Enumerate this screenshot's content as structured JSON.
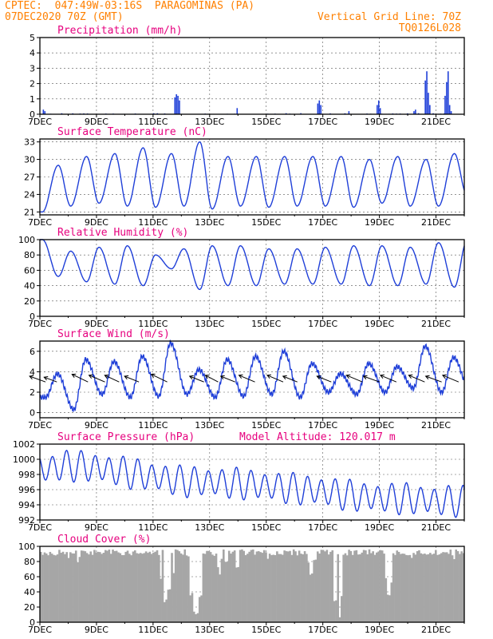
{
  "header": {
    "station": "CPTEC:  047:49W-03:16S  PARAGOMINAS (PA)",
    "run": "07DEC2020 70Z (GMT)",
    "grid_line": "Vertical Grid Line: 70Z",
    "code": "TQ0126L028"
  },
  "colors": {
    "header": "#ff8000",
    "title": "#e6007e",
    "series": "#1f3fd8",
    "cloud": "#a6a6a6",
    "wind": "#000000"
  },
  "chart_data": [
    {
      "id": "precip",
      "type": "bar",
      "title": "Precipitation (mm/h)",
      "ylim": [
        0,
        5
      ],
      "yticks": [
        0,
        1,
        2,
        3,
        4,
        5
      ],
      "xlabels": [
        "7DEC",
        "9DEC",
        "11DEC",
        "13DEC",
        "15DEC",
        "17DEC",
        "19DEC",
        "21DEC"
      ],
      "xlim_days": [
        0,
        15
      ],
      "events": [
        {
          "day": 0.1,
          "values": [
            0.3,
            0.2
          ]
        },
        {
          "day": 4.75,
          "values": [
            1.1,
            1.3,
            1.2,
            0.9
          ]
        },
        {
          "day": 6.95,
          "values": [
            0.4
          ]
        },
        {
          "day": 9.8,
          "values": [
            0.7,
            0.9,
            0.6
          ]
        },
        {
          "day": 10.9,
          "values": [
            0.2
          ]
        },
        {
          "day": 11.9,
          "values": [
            0.6,
            0.9,
            0.4
          ]
        },
        {
          "day": 13.2,
          "values": [
            0.2,
            0.3
          ]
        },
        {
          "day": 13.6,
          "values": [
            2.2,
            2.8,
            1.4,
            0.6
          ]
        },
        {
          "day": 14.3,
          "values": [
            1.2,
            2.1,
            2.8,
            0.6,
            0.2
          ]
        }
      ]
    },
    {
      "id": "temp",
      "type": "line",
      "title": "Surface Temperature (nC)",
      "ylim": [
        20.5,
        33.5
      ],
      "yticks": [
        21,
        24,
        27,
        30,
        33
      ],
      "xlabels": [
        "7DEC",
        "9DEC",
        "11DEC",
        "13DEC",
        "15DEC",
        "17DEC",
        "19DEC",
        "21DEC"
      ],
      "daily_min": [
        21.0,
        22.0,
        22.5,
        22.0,
        21.8,
        22.0,
        21.5,
        22.0,
        21.8,
        22.0,
        22.0,
        21.8,
        22.5,
        22.0,
        22.0,
        24.0
      ],
      "daily_max": [
        29.0,
        30.5,
        31.0,
        32.0,
        31.0,
        33.0,
        30.5,
        30.5,
        30.5,
        30.5,
        30.5,
        30.0,
        30.5,
        30.0,
        31.0
      ],
      "min_day_fraction": 0.09,
      "max_day_fraction": 0.65
    },
    {
      "id": "rh",
      "type": "line",
      "title": "Relative Humidity (%)",
      "ylim": [
        0,
        100
      ],
      "yticks": [
        0,
        20,
        40,
        60,
        80,
        100
      ],
      "xlabels": [
        "7DEC",
        "9DEC",
        "11DEC",
        "13DEC",
        "15DEC",
        "17DEC",
        "19DEC",
        "21DEC"
      ],
      "daily_max": [
        100,
        85,
        90,
        92,
        80,
        88,
        92,
        92,
        88,
        88,
        90,
        92,
        92,
        90,
        96,
        98
      ],
      "daily_min": [
        52,
        45,
        42,
        40,
        62,
        35,
        40,
        40,
        42,
        42,
        42,
        40,
        40,
        42,
        38,
        40
      ],
      "min_day_fraction": 0.65,
      "max_day_fraction": 0.09
    },
    {
      "id": "wind",
      "type": "line",
      "title": "Surface Wind (m/s)",
      "ylim": [
        -0.5,
        7
      ],
      "yticks": [
        0,
        2,
        4,
        6
      ],
      "xlabels": [
        "7DEC",
        "9DEC",
        "11DEC",
        "13DEC",
        "15DEC",
        "17DEC",
        "19DEC",
        "21DEC"
      ],
      "daily_max": [
        3.8,
        5.2,
        5.0,
        5.5,
        6.8,
        4.2,
        5.2,
        5.5,
        6.0,
        4.8,
        3.8,
        4.8,
        4.5,
        6.5,
        5.4,
        5.0
      ],
      "daily_min": [
        1.5,
        0.3,
        1.8,
        1.5,
        1.6,
        1.8,
        1.5,
        1.6,
        1.8,
        1.5,
        2.0,
        1.8,
        2.0,
        2.4,
        2.0,
        2.2
      ],
      "arrows": [
        {
          "day": 0.2,
          "u": -1,
          "v": -0.6
        },
        {
          "day": 0.6,
          "u": -0.8,
          "v": -0.5
        },
        {
          "day": 1.7,
          "u": -1,
          "v": -0.8
        },
        {
          "day": 2.3,
          "u": -1,
          "v": -0.7
        },
        {
          "day": 2.8,
          "u": -0.9,
          "v": -0.7
        },
        {
          "day": 3.5,
          "u": -0.9,
          "v": -0.6
        },
        {
          "day": 4.5,
          "u": -1,
          "v": -0.8
        },
        {
          "day": 5.8,
          "u": -0.9,
          "v": -0.6
        },
        {
          "day": 6.3,
          "u": -0.8,
          "v": -0.7
        },
        {
          "day": 6.9,
          "u": -0.9,
          "v": -0.6
        },
        {
          "day": 7.6,
          "u": -1,
          "v": -0.7
        },
        {
          "day": 8.6,
          "u": -1,
          "v": -0.7
        },
        {
          "day": 9.1,
          "u": -0.9,
          "v": -0.6
        },
        {
          "day": 10.3,
          "u": -0.9,
          "v": -0.6
        },
        {
          "day": 11.4,
          "u": -1,
          "v": -0.7
        },
        {
          "day": 12.0,
          "u": -1,
          "v": -0.6
        },
        {
          "day": 12.6,
          "u": -1,
          "v": -0.7
        },
        {
          "day": 13.6,
          "u": -1,
          "v": -0.7
        },
        {
          "day": 14.2,
          "u": -1,
          "v": -0.6
        },
        {
          "day": 14.8,
          "u": -1,
          "v": -0.7
        }
      ]
    },
    {
      "id": "pres",
      "type": "line",
      "title": "Surface Pressure (hPa)",
      "subtitle": "Model Altitude: 120.017 m",
      "ylim": [
        992,
        1002
      ],
      "yticks": [
        992,
        994,
        996,
        998,
        1000,
        1002
      ],
      "xlabels": [
        "7DEC",
        "9DEC",
        "11DEC",
        "13DEC",
        "15DEC",
        "17DEC",
        "19DEC",
        "21DEC"
      ],
      "daily_mean": [
        998.6,
        999.2,
        998.9,
        998.3,
        997.7,
        997.1,
        997.0,
        996.8,
        996.5,
        996.1,
        995.8,
        995.2,
        994.9,
        994.8,
        994.5
      ],
      "amplitude": 1.8,
      "end_value": 996.0
    },
    {
      "id": "cloud",
      "type": "area",
      "title": "Cloud Cover (%)",
      "ylim": [
        0,
        100
      ],
      "yticks": [
        0,
        20,
        40,
        60,
        80,
        100
      ],
      "xlabels": [
        "7DEC",
        "9DEC",
        "11DEC",
        "13DEC",
        "15DEC",
        "17DEC",
        "19DEC",
        "21DEC"
      ],
      "base_level": 96,
      "dips": [
        {
          "day": 4.45,
          "value": 25
        },
        {
          "day": 4.55,
          "value": 40
        },
        {
          "day": 5.35,
          "value": 35
        },
        {
          "day": 5.45,
          "value": 12
        },
        {
          "day": 5.55,
          "value": 10
        },
        {
          "day": 6.3,
          "value": 68
        },
        {
          "day": 6.6,
          "value": 75
        },
        {
          "day": 7.0,
          "value": 70
        },
        {
          "day": 9.6,
          "value": 62
        },
        {
          "day": 10.45,
          "value": 25
        },
        {
          "day": 10.6,
          "value": 2
        },
        {
          "day": 12.3,
          "value": 35
        }
      ]
    }
  ]
}
